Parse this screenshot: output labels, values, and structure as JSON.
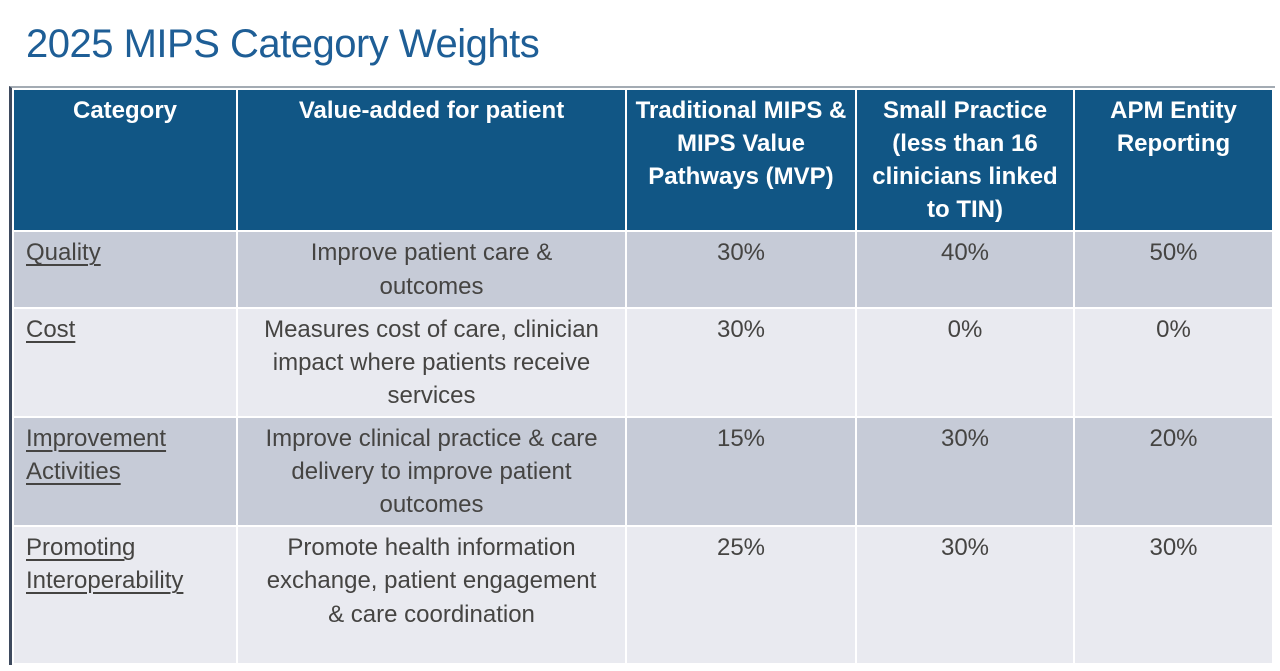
{
  "page": {
    "title": "2025 MIPS Category Weights"
  },
  "colors": {
    "title_text": "#1E5E96",
    "header_background": "#115685",
    "header_text": "#FFFFFF",
    "row_dark": "#C6CBD7",
    "row_light": "#E9EAF0",
    "body_text": "#454442",
    "table_left_border": "#3E4A5E"
  },
  "table": {
    "columns": [
      {
        "label": "Category"
      },
      {
        "label": "Value-added for patient"
      },
      {
        "label": "Traditional MIPS & MIPS Value Pathways (MVP)"
      },
      {
        "label": "Small Practice (less than 16 clinicians linked to TIN)"
      },
      {
        "label": "APM Entity Reporting"
      }
    ],
    "rows": [
      {
        "category": "Quality",
        "value_added": "Improve patient care & outcomes",
        "traditional_mips": "30%",
        "small_practice": "40%",
        "apm_entity": "50%"
      },
      {
        "category": "Cost",
        "value_added": "Measures cost of care, clinician impact where patients receive services",
        "traditional_mips": "30%",
        "small_practice": "0%",
        "apm_entity": "0%"
      },
      {
        "category": "Improvement Activities",
        "value_added": "Improve clinical practice & care delivery to improve patient outcomes",
        "traditional_mips": "15%",
        "small_practice": "30%",
        "apm_entity": "20%"
      },
      {
        "category": "Promoting Interoperability",
        "value_added": "Promote health information exchange, patient engagement & care coordination",
        "traditional_mips": "25%",
        "small_practice": "30%",
        "apm_entity": "30%"
      }
    ]
  },
  "chart_data": {
    "type": "table",
    "title": "2025 MIPS Category Weights",
    "categories": [
      "Quality",
      "Cost",
      "Improvement Activities",
      "Promoting Interoperability"
    ],
    "series": [
      {
        "name": "Traditional MIPS & MIPS Value Pathways (MVP)",
        "values": [
          30,
          30,
          15,
          25
        ]
      },
      {
        "name": "Small Practice (less than 16 clinicians linked to TIN)",
        "values": [
          40,
          0,
          30,
          30
        ]
      },
      {
        "name": "APM Entity Reporting",
        "values": [
          50,
          0,
          20,
          30
        ]
      }
    ],
    "unit": "%"
  }
}
